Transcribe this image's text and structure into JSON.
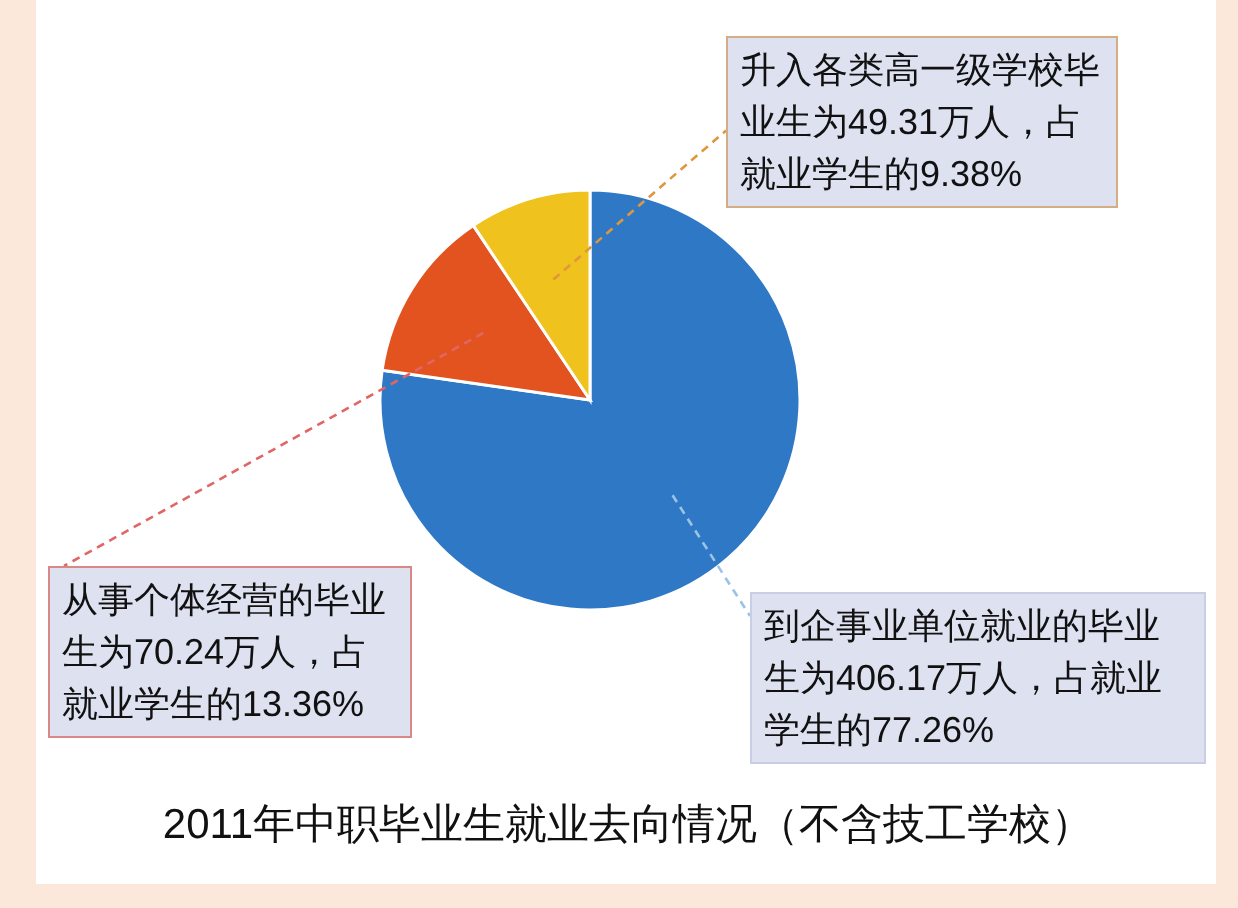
{
  "chart_data": {
    "type": "pie",
    "title": "2011年中职毕业生就业去向情况（不含技工学校）",
    "categories": [
      "到企事业单位就业的毕业生为406.17万人，占就业学生的77.26%",
      "从事个体经营的毕业生为70.24万人，占就业学生的13.36%",
      "升入各类高一级学校毕业生为49.31万人，占就业学生的9.38%"
    ],
    "values": [
      77.26,
      13.36,
      9.38
    ],
    "colors": [
      "#2e78c6",
      "#e2531f",
      "#f0c21e"
    ]
  }
}
